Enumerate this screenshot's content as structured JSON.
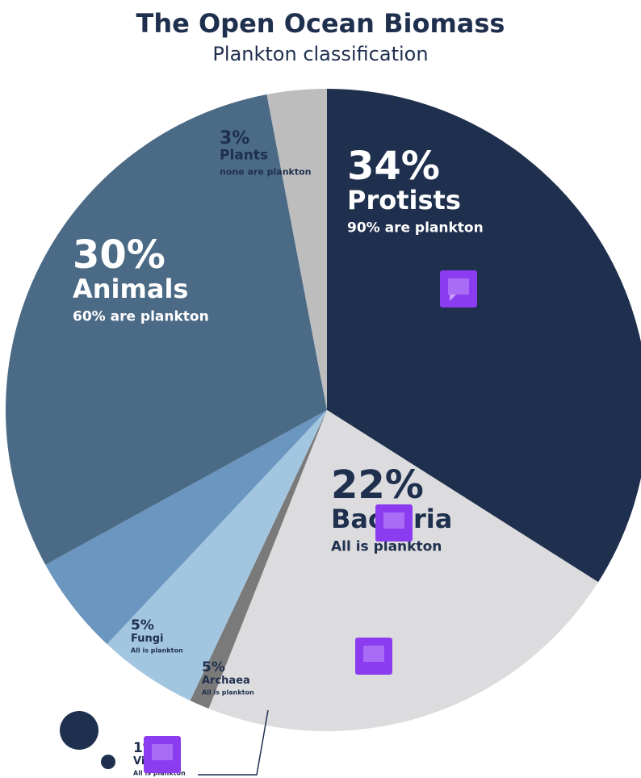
{
  "chart_data": {
    "type": "pie",
    "title": "The Open Ocean Biomass",
    "subtitle": "Plankton classification",
    "categories": [
      "Protists",
      "Bacteria",
      "Viruses",
      "Archaea",
      "Fungi",
      "Animals",
      "Plants"
    ],
    "values": [
      34,
      22,
      1,
      5,
      5,
      30,
      3
    ],
    "value_labels": [
      "34%",
      "22%",
      "1%",
      "5%",
      "5%",
      "30%",
      "3%"
    ],
    "descriptions": [
      "90% are plankton",
      "All is plankton",
      "All is plankton",
      "All is plankton",
      "All is plankton",
      "60% are plankton",
      "none are plankton"
    ],
    "colors": [
      "#1f2f4e",
      "#dcdcde",
      "#7a7a7a",
      "#a3c6e0",
      "#6b96c0",
      "#4a6a86",
      "#bdbdbd"
    ]
  }
}
